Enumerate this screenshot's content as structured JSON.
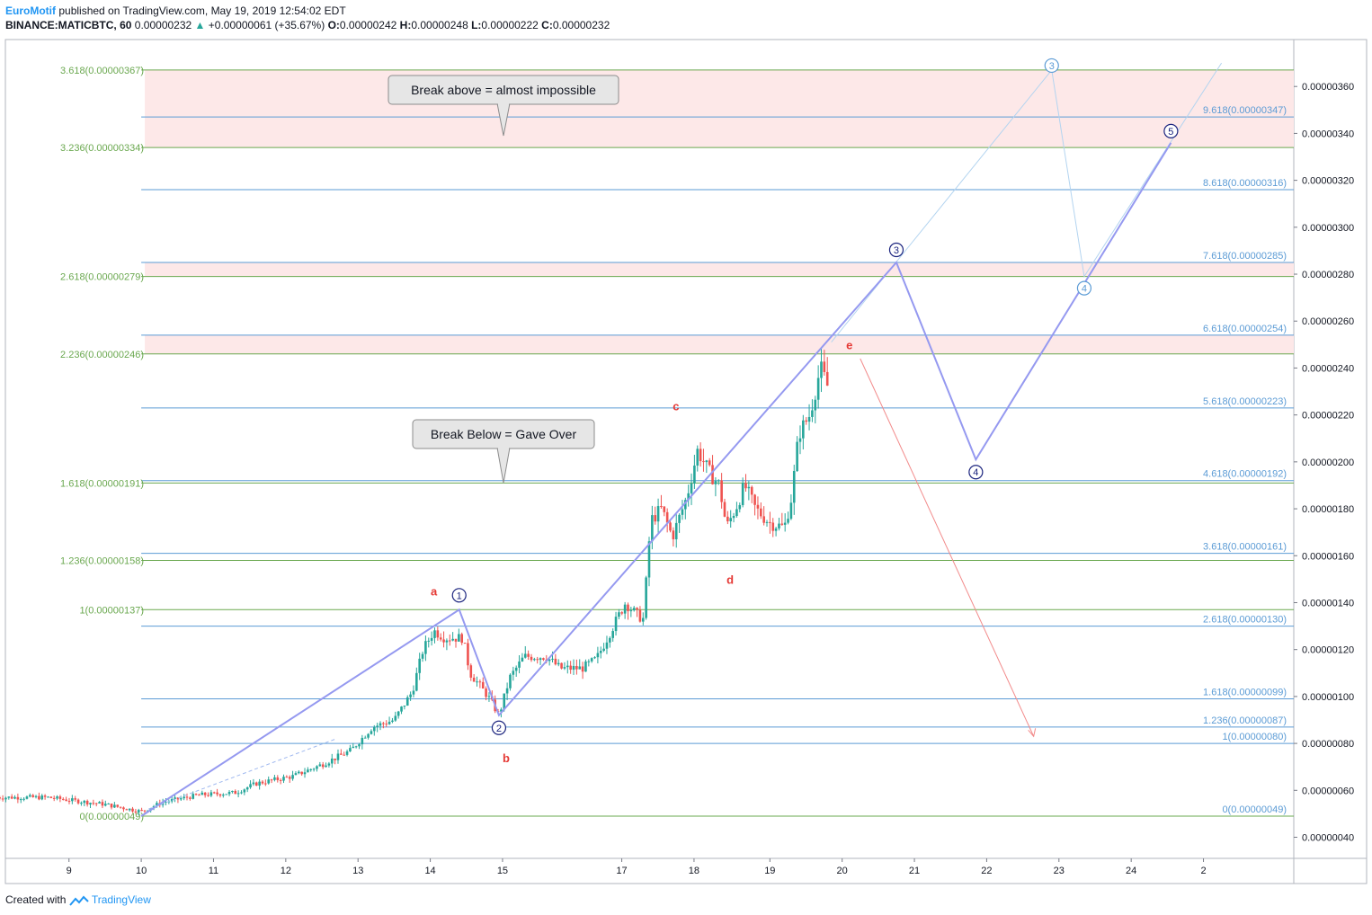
{
  "header": {
    "author": "EuroMotif",
    "published": "published on TradingView.com, May 19, 2019 12:54:02 EDT",
    "symbol": "BINANCE:MATICBTC, 60",
    "price": "0.00000232",
    "change": "+0.00000061 (+35.67%)",
    "o_label": "O:",
    "o_value": "0.00000242",
    "h_label": "H:",
    "h_value": "0.00000248",
    "l_label": "L:",
    "l_value": "0.00000222",
    "c_label": "C:",
    "c_value": "0.00000232"
  },
  "footer": {
    "created": "Created with",
    "brand": "TradingView"
  },
  "colors": {
    "up": "#26a69a",
    "down": "#ef5350",
    "wave": "#9599f0",
    "green_fib": "#6aa84f",
    "blue_fib": "#5b9bd5",
    "zone": "#fde8e8",
    "label_red": "#e53935",
    "navy": "#1a237e"
  },
  "chart_data": {
    "type": "candlestick",
    "x_ticks": [
      "9",
      "10",
      "11",
      "12",
      "13",
      "14",
      "15",
      "17",
      "18",
      "19",
      "20",
      "21",
      "22",
      "23",
      "24",
      "2"
    ],
    "y_ticks": [
      "0.00000040",
      "0.00000060",
      "0.00000080",
      "0.00000100",
      "0.00000120",
      "0.00000140",
      "0.00000160",
      "0.00000180",
      "0.00000200",
      "0.00000220",
      "0.00000240",
      "0.00000260",
      "0.00000280",
      "0.00000300",
      "0.00000320",
      "0.00000340",
      "0.00000360"
    ],
    "ylim": [
      3.1e-07,
      3.8e-06
    ],
    "fib_left": [
      {
        "label": "3.618(0.00000367)",
        "value": 3.67e-06
      },
      {
        "label": "3.236(0.00000334)",
        "value": 3.34e-06
      },
      {
        "label": "2.618(0.00000279)",
        "value": 2.79e-06
      },
      {
        "label": "2.236(0.00000246)",
        "value": 2.46e-06
      },
      {
        "label": "1.618(0.00000191)",
        "value": 1.91e-06
      },
      {
        "label": "1.236(0.00000158)",
        "value": 1.58e-06
      },
      {
        "label": "1(0.00000137)",
        "value": 1.37e-06
      },
      {
        "label": "0(0.00000049)",
        "value": 4.9e-07
      }
    ],
    "fib_right": [
      {
        "label": "9.618(0.00000347)",
        "value": 3.47e-06
      },
      {
        "label": "8.618(0.00000316)",
        "value": 3.16e-06
      },
      {
        "label": "7.618(0.00000285)",
        "value": 2.85e-06
      },
      {
        "label": "6.618(0.00000254)",
        "value": 2.54e-06
      },
      {
        "label": "5.618(0.00000223)",
        "value": 2.23e-06
      },
      {
        "label": "4.618(0.00000192)",
        "value": 1.92e-06
      },
      {
        "label": "3.618(0.00000161)",
        "value": 1.61e-06
      },
      {
        "label": "2.618(0.00000130)",
        "value": 1.3e-06
      },
      {
        "label": "1.618(0.00000099)",
        "value": 9.9e-07
      },
      {
        "label": "1.236(0.00000087)",
        "value": 8.7e-07
      },
      {
        "label": "1(0.00000080)",
        "value": 8e-07
      },
      {
        "label": "0(0.00000049)",
        "value": 4.9e-07
      }
    ],
    "zones": [
      {
        "from": 3.47e-06,
        "to": 3.67e-06
      },
      {
        "from": 3.34e-06,
        "to": 3.47e-06
      },
      {
        "from": 2.79e-06,
        "to": 2.85e-06
      },
      {
        "from": 2.46e-06,
        "to": 2.54e-06
      }
    ],
    "callouts": [
      {
        "text": "Break above = almost impossible",
        "pointer_value": 3.39e-06
      },
      {
        "text": "Break Below = Gave Over",
        "pointer_value": 1.91e-06
      }
    ],
    "wave_path": [
      {
        "label": "",
        "t": 10.0,
        "value": 4.9e-07
      },
      {
        "label": "1",
        "t": 14.4,
        "value": 1.37e-06
      },
      {
        "label": "2",
        "t": 14.95,
        "value": 9.2e-07
      },
      {
        "label": "3",
        "t": 20.45,
        "value": 2.85e-06
      },
      {
        "label": "4",
        "t": 21.55,
        "value": 2.01e-06
      },
      {
        "label": "5",
        "t": 24.25,
        "value": 3.36e-06
      }
    ],
    "alt_wave_path": [
      {
        "label": "",
        "t": 19.55,
        "value": 2.51e-06
      },
      {
        "label": "3",
        "t": 22.6,
        "value": 3.67e-06
      },
      {
        "label": "4",
        "t": 23.05,
        "value": 2.79e-06
      },
      {
        "label": "",
        "t": 24.95,
        "value": 3.7e-06
      }
    ],
    "abcde": [
      {
        "label": "a",
        "t": 14.05,
        "value": 1.43e-06
      },
      {
        "label": "b",
        "t": 15.05,
        "value": 7.2e-07
      },
      {
        "label": "c",
        "t": 17.4,
        "value": 2.22e-06
      },
      {
        "label": "d",
        "t": 18.15,
        "value": 1.48e-06
      },
      {
        "label": "e",
        "t": 19.8,
        "value": 2.48e-06
      }
    ],
    "projection": {
      "from": {
        "t": 19.95,
        "value": 2.44e-06
      },
      "to": {
        "t": 22.35,
        "value": 8.3e-07
      }
    },
    "price_anchors": [
      [
        8.0,
        5.7e-07
      ],
      [
        8.7,
        5.7e-07
      ],
      [
        9.5,
        5.4e-07
      ],
      [
        10.0,
        5.1e-07
      ],
      [
        10.3,
        5.5e-07
      ],
      [
        10.8,
        5.8e-07
      ],
      [
        11.3,
        5.9e-07
      ],
      [
        11.6,
        6.3e-07
      ],
      [
        12.1,
        6.6e-07
      ],
      [
        12.5,
        7.1e-07
      ],
      [
        12.9,
        7.7e-07
      ],
      [
        13.2,
        8.7e-07
      ],
      [
        13.5,
        9e-07
      ],
      [
        13.75,
        1.02e-06
      ],
      [
        13.9,
        1.2e-06
      ],
      [
        14.05,
        1.28e-06
      ],
      [
        14.2,
        1.25e-06
      ],
      [
        14.45,
        1.25e-06
      ],
      [
        14.55,
        1.1e-06
      ],
      [
        14.8,
        1e-06
      ],
      [
        14.95,
        9.2e-07
      ],
      [
        15.1,
        1.08e-06
      ],
      [
        15.3,
        1.17e-06
      ],
      [
        15.6,
        1.17e-06
      ],
      [
        15.8,
        1.12e-06
      ],
      [
        16.1,
        1.12e-06
      ],
      [
        16.3,
        1.16e-06
      ],
      [
        16.5,
        1.28e-06
      ],
      [
        16.7,
        1.4e-06
      ],
      [
        16.85,
        1.35e-06
      ],
      [
        16.95,
        1.33e-06
      ],
      [
        17.05,
        1.75e-06
      ],
      [
        17.2,
        1.8e-06
      ],
      [
        17.35,
        1.68e-06
      ],
      [
        17.55,
        1.85e-06
      ],
      [
        17.7,
        2.05e-06
      ],
      [
        17.85,
        1.96e-06
      ],
      [
        18.0,
        1.9e-06
      ],
      [
        18.1,
        1.72e-06
      ],
      [
        18.25,
        1.82e-06
      ],
      [
        18.35,
        1.9e-06
      ],
      [
        18.5,
        1.8e-06
      ],
      [
        18.7,
        1.74e-06
      ],
      [
        18.9,
        1.72e-06
      ],
      [
        19.0,
        1.85e-06
      ],
      [
        19.1,
        2.12e-06
      ],
      [
        19.25,
        2.2e-06
      ],
      [
        19.4,
        2.4e-06
      ],
      [
        19.5,
        2.32e-06
      ]
    ]
  }
}
